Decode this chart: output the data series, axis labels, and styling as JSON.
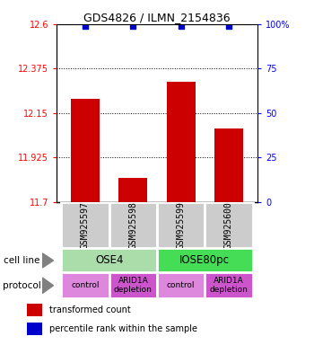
{
  "title": "GDS4826 / ILMN_2154836",
  "samples": [
    "GSM925597",
    "GSM925598",
    "GSM925599",
    "GSM925600"
  ],
  "bar_values": [
    12.22,
    11.82,
    12.31,
    12.07
  ],
  "percentile_values": [
    99,
    99,
    99,
    99
  ],
  "y_min": 11.7,
  "y_max": 12.6,
  "y_ticks": [
    11.7,
    11.925,
    12.15,
    12.375,
    12.6
  ],
  "y_tick_labels": [
    "11.7",
    "11.925",
    "12.15",
    "12.375",
    "12.6"
  ],
  "right_y_ticks": [
    0,
    25,
    50,
    75,
    100
  ],
  "right_y_tick_labels": [
    "0",
    "25",
    "50",
    "75",
    "100%"
  ],
  "bar_color": "#cc0000",
  "dot_color": "#0000cc",
  "bar_width": 0.6,
  "sample_box_color": "#cccccc",
  "cell_line_ose4_color": "#aaddaa",
  "cell_line_iose_color": "#44dd55",
  "protocol_control_color": "#dd88dd",
  "protocol_arid_color": "#cc55cc",
  "legend_bar_color": "#cc0000",
  "legend_dot_color": "#0000cc",
  "protocols": [
    "control",
    "ARID1A\ndepletion",
    "control",
    "ARID1A\ndepletion"
  ]
}
